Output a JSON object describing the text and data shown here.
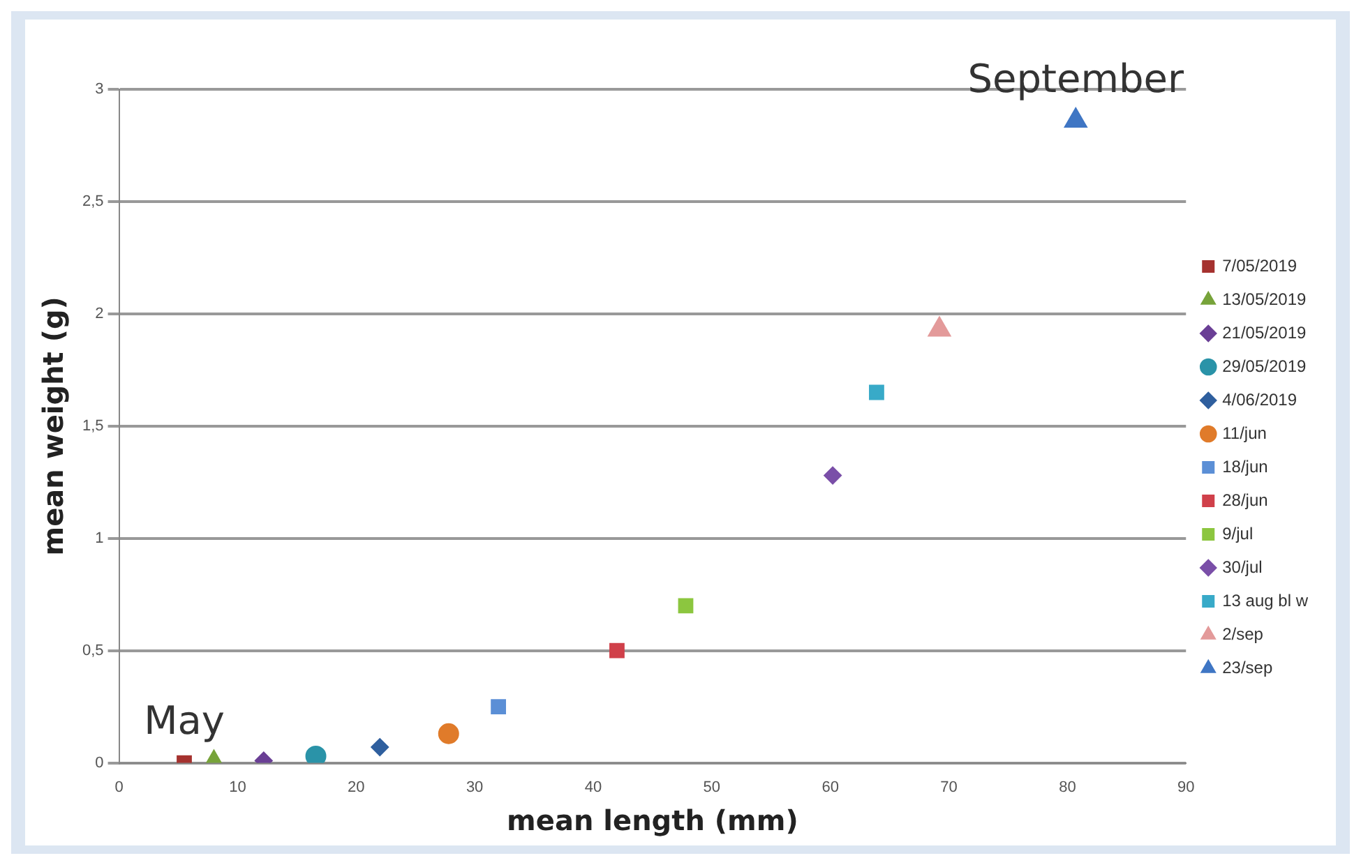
{
  "chart_data": {
    "type": "scatter",
    "xlabel": "mean length (mm)",
    "ylabel": "mean weight (g)",
    "xlim": [
      0,
      90
    ],
    "xticks": [
      0,
      10,
      20,
      30,
      40,
      50,
      60,
      70,
      80,
      90
    ],
    "ylim": [
      0,
      3
    ],
    "yticks": [
      0,
      {
        "value": 0.5,
        "label": "0,5"
      },
      1,
      {
        "value": 1.5,
        "label": "1,5"
      },
      2,
      {
        "value": 2.5,
        "label": "2,5"
      },
      3
    ],
    "grid": "y",
    "legend": "right",
    "annotations": [
      {
        "text": "May",
        "x": 5.5,
        "y": 0
      },
      {
        "text": "September",
        "x": 80.7,
        "y": 2.86
      }
    ],
    "series": [
      {
        "name": "7/05/2019",
        "color": "#a5322f",
        "marker": "square",
        "x": [
          5.5
        ],
        "values": [
          0
        ]
      },
      {
        "name": "13/05/2019",
        "color": "#77a33a",
        "marker": "triangle",
        "x": [
          8.0
        ],
        "values": [
          0
        ]
      },
      {
        "name": "21/05/2019",
        "color": "#6a3f95",
        "marker": "diamond",
        "x": [
          12.2
        ],
        "values": [
          0.01
        ]
      },
      {
        "name": "29/05/2019",
        "color": "#2a93a8",
        "marker": "circle",
        "x": [
          16.6
        ],
        "values": [
          0.03
        ]
      },
      {
        "name": "4/06/2019",
        "color": "#2f5f9e",
        "marker": "diamond",
        "x": [
          22.0
        ],
        "values": [
          0.07
        ]
      },
      {
        "name": "11/jun",
        "color": "#e07b2a",
        "marker": "circle",
        "x": [
          27.8
        ],
        "values": [
          0.13
        ]
      },
      {
        "name": "18/jun",
        "color": "#5b8fd6",
        "marker": "square",
        "x": [
          32.0
        ],
        "values": [
          0.25
        ]
      },
      {
        "name": "28/jun",
        "color": "#d0404a",
        "marker": "square",
        "x": [
          42.0
        ],
        "values": [
          0.5
        ]
      },
      {
        "name": "9/jul",
        "color": "#8cc63f",
        "marker": "square",
        "x": [
          47.8
        ],
        "values": [
          0.7
        ]
      },
      {
        "name": "30/jul",
        "color": "#7a4fa8",
        "marker": "diamond",
        "x": [
          60.2
        ],
        "values": [
          1.28
        ]
      },
      {
        "name": "13 aug bl w",
        "color": "#38aac8",
        "marker": "square",
        "x": [
          63.9
        ],
        "values": [
          1.65
        ]
      },
      {
        "name": "2/sep",
        "color": "#e39a9a",
        "marker": "triangle",
        "x": [
          69.2
        ],
        "values": [
          1.93
        ]
      },
      {
        "name": "23/sep",
        "color": "#3f76c4",
        "marker": "triangle",
        "x": [
          80.7
        ],
        "values": [
          2.86
        ]
      }
    ]
  }
}
